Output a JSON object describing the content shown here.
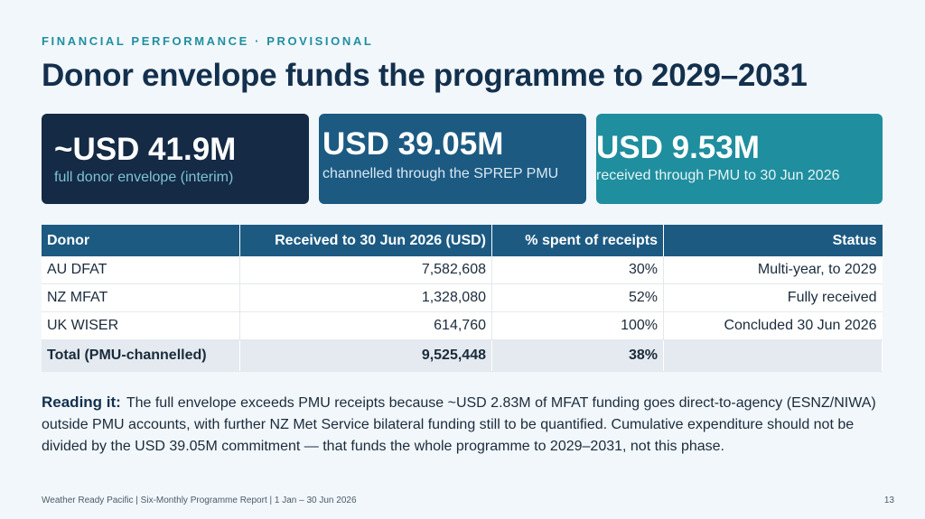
{
  "eyebrow": "FINANCIAL PERFORMANCE · PROVISIONAL",
  "title": "Donor envelope funds the programme to 2029–2031",
  "cards": [
    {
      "value": "~USD 41.9M",
      "label": "full donor envelope (interim)"
    },
    {
      "value": "USD 39.05M",
      "label": "channelled through the SPREP PMU"
    },
    {
      "value": "USD 9.53M",
      "label": "received through PMU to 30 Jun 2026"
    }
  ],
  "table": {
    "headers": [
      "Donor",
      "Received to 30 Jun 2026 (USD)",
      "% spent of receipts",
      "Status"
    ],
    "rows": [
      [
        "AU DFAT",
        "7,582,608",
        "30%",
        "Multi-year, to 2029"
      ],
      [
        "NZ MFAT",
        "1,328,080",
        "52%",
        "Fully received"
      ],
      [
        "UK WISER",
        "614,760",
        "100%",
        "Concluded 30 Jun 2026"
      ]
    ],
    "total": [
      "Total (PMU-channelled)",
      "9,525,448",
      "38%",
      ""
    ]
  },
  "reading": {
    "lead": "Reading it:",
    "text": "The full envelope exceeds PMU receipts because ~USD 2.83M of MFAT funding goes direct-to-agency (ESNZ/NIWA) outside PMU accounts, with further NZ Met Service bilateral funding still to be quantified. Cumulative expenditure should not be divided by the USD 39.05M commitment — that funds the whole programme to 2029–2031, not this phase."
  },
  "footer": "Weather Ready Pacific  |  Six-Monthly Programme Report  |  1 Jan – 30 Jun 2026",
  "page_number": "13"
}
